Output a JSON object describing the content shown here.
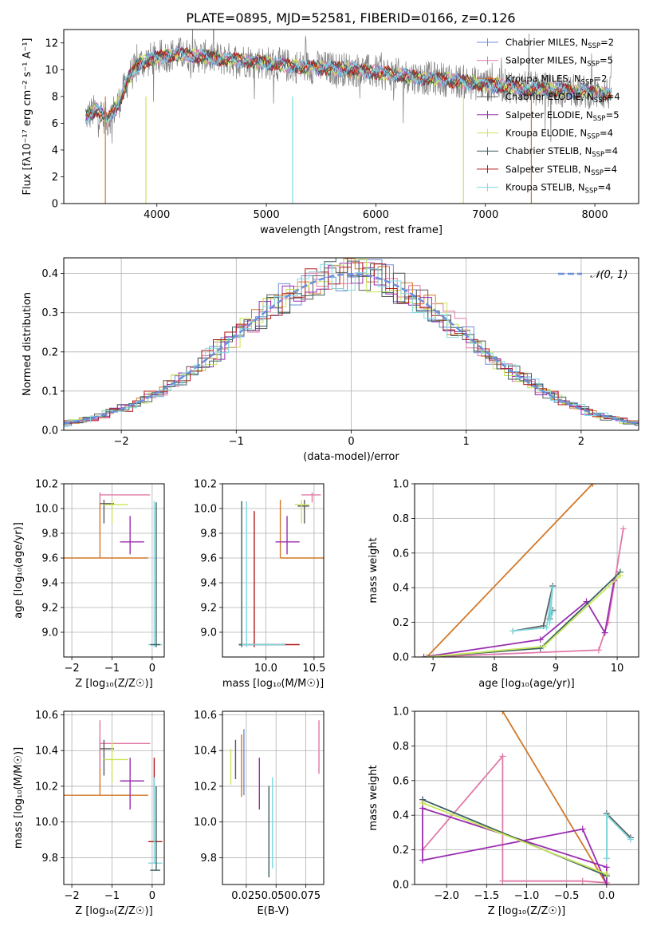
{
  "figure_title": "PLATE=0895, MJD=52581, FIBERID=0166, z=0.126",
  "colors": {
    "chabrier_miles": "#6b8fd9",
    "salpeter_miles": "#e07aa8",
    "kroupa_miles": "#d2782a",
    "chabrier_elodie": "#5a5a5a",
    "salpeter_elodie": "#9a2db0",
    "kroupa_elodie": "#c8e65a",
    "chabrier_stelib": "#3a6060",
    "salpeter_stelib": "#b01818",
    "kroupa_stelib": "#80d8e0"
  },
  "chart_data": [
    {
      "id": "spectrum",
      "type": "line",
      "xlabel": "wavelength [Angstrom, rest frame]",
      "ylabel": "Flux [fλ10⁻¹⁷ erg cm⁻² s⁻¹ A⁻¹]",
      "xlim": [
        3150,
        8400
      ],
      "ylim": [
        0,
        13
      ],
      "xticks": [
        4000,
        5000,
        6000,
        7000,
        8000
      ],
      "yticks": [
        0,
        2,
        4,
        6,
        8,
        10,
        12
      ],
      "grid": false,
      "legend_position": "top-right",
      "data_continuum": {
        "x": [
          3350,
          3450,
          3550,
          3650,
          3750,
          3850,
          3950,
          4050,
          4200,
          4400,
          4600,
          4800,
          5000,
          5200,
          5400,
          5600,
          5800,
          6000,
          6200,
          6400,
          6600,
          6800,
          7000,
          7200,
          7400,
          7600,
          7800,
          8000,
          8150
        ],
        "y": [
          6.5,
          7.0,
          6.2,
          7.5,
          9.5,
          10.5,
          10.8,
          11.0,
          11.2,
          11.0,
          10.8,
          10.7,
          10.5,
          10.3,
          10.2,
          10.1,
          10.0,
          9.8,
          9.6,
          9.4,
          9.3,
          9.1,
          8.9,
          8.8,
          8.6,
          8.5,
          8.4,
          8.3,
          8.2
        ]
      },
      "drops": [
        {
          "x": 3530,
          "series": "kroupa_miles"
        },
        {
          "x": 3900,
          "series": "kroupa_elodie"
        },
        {
          "x": 5240,
          "series": "kroupa_stelib"
        },
        {
          "x": 6800,
          "series": "kroupa_elodie"
        },
        {
          "x": 7420,
          "series": "kroupa_miles"
        }
      ],
      "legend": [
        {
          "label": "Chabrier MILES, N",
          "sub": "SSP",
          "suffix": "=2",
          "color_key": "chabrier_miles"
        },
        {
          "label": "Salpeter MILES, N",
          "sub": "SSP",
          "suffix": "=5",
          "color_key": "salpeter_miles"
        },
        {
          "label": "Kroupa MILES, N",
          "sub": "SSP",
          "suffix": "=2",
          "color_key": "kroupa_miles"
        },
        {
          "label": "Chabrier ELODIE, N",
          "sub": "SSP",
          "suffix": "=4",
          "color_key": "chabrier_elodie"
        },
        {
          "label": "Salpeter ELODIE, N",
          "sub": "SSP",
          "suffix": "=5",
          "color_key": "salpeter_elodie"
        },
        {
          "label": "Kroupa ELODIE, N",
          "sub": "SSP",
          "suffix": "=4",
          "color_key": "kroupa_elodie"
        },
        {
          "label": "Chabrier STELIB, N",
          "sub": "SSP",
          "suffix": "=4",
          "color_key": "chabrier_stelib"
        },
        {
          "label": "Salpeter STELIB, N",
          "sub": "SSP",
          "suffix": "=4",
          "color_key": "salpeter_stelib"
        },
        {
          "label": "Kroupa STELIB, N",
          "sub": "SSP",
          "suffix": "=4",
          "color_key": "kroupa_stelib"
        }
      ]
    },
    {
      "id": "residuals",
      "type": "line",
      "xlabel": "(data-model)/error",
      "ylabel": "Normed distribution",
      "xlim": [
        -2.5,
        2.5
      ],
      "ylim": [
        0,
        0.44
      ],
      "xticks": [
        -2,
        -1,
        0,
        1,
        2
      ],
      "yticks": [
        0.0,
        0.1,
        0.2,
        0.3,
        0.4
      ],
      "grid": true,
      "legend_position": "top-right",
      "gaussian_label": "𝒩(0, 1)",
      "gaussian_color": "#6a8fdc"
    },
    {
      "id": "age_vs_Z",
      "type": "scatter",
      "xlabel": "Z [log₁₀(Z/Z☉)]",
      "ylabel": "age  [log₁₀(age/yr)]",
      "xlim": [
        -2.2,
        0.3
      ],
      "ylim": [
        8.8,
        10.2
      ],
      "xticks": [
        -2,
        -1,
        0
      ],
      "yticks": [
        9.0,
        9.2,
        9.4,
        9.6,
        9.8,
        10.0,
        10.2
      ],
      "grid": true,
      "crosses": [
        {
          "c": "kroupa_miles",
          "x": -1.3,
          "y": 9.6,
          "x0": -2.2,
          "x1": -0.1,
          "y0": 9.6,
          "y1": 10.05
        },
        {
          "c": "salpeter_miles",
          "x": -1.3,
          "y": 10.11,
          "x0": -1.3,
          "x1": -0.05,
          "y0": 10.05,
          "y1": 10.13
        },
        {
          "c": "chabrier_elodie",
          "x": -1.2,
          "y": 10.04,
          "x0": -1.3,
          "x1": -0.95,
          "y0": 9.88,
          "y1": 10.07
        },
        {
          "c": "kroupa_elodie",
          "x": -1.0,
          "y": 10.03,
          "x0": -1.2,
          "x1": -0.6,
          "y0": 9.88,
          "y1": 10.07
        },
        {
          "c": "salpeter_elodie",
          "x": -0.55,
          "y": 9.73,
          "x0": -0.8,
          "x1": -0.2,
          "y0": 9.63,
          "y1": 9.94
        },
        {
          "c": "kroupa_stelib",
          "x": 0.05,
          "y": 8.9,
          "x0": -0.1,
          "x1": 0.25,
          "y0": 8.88,
          "y1": 10.06
        },
        {
          "c": "chabrier_stelib",
          "x": 0.1,
          "y": 8.9,
          "x0": -0.05,
          "x1": 0.2,
          "y0": 8.88,
          "y1": 10.05
        }
      ]
    },
    {
      "id": "age_vs_mass",
      "type": "scatter",
      "xlabel": "mass [log₁₀(M/M☉)]",
      "ylabel": "",
      "xlim": [
        9.55,
        10.6
      ],
      "ylim": [
        8.8,
        10.2
      ],
      "xticks": [
        10.0,
        10.5
      ],
      "yticks": [
        9.0,
        9.2,
        9.4,
        9.6,
        9.8,
        10.0,
        10.2
      ],
      "grid": true,
      "crosses": [
        {
          "c": "kroupa_miles",
          "x": 10.15,
          "y": 9.6,
          "x0": 10.15,
          "x1": 10.6,
          "y0": 9.6,
          "y1": 10.07
        },
        {
          "c": "salpeter_miles",
          "x": 10.48,
          "y": 10.11,
          "x0": 10.37,
          "x1": 10.57,
          "y0": 10.05,
          "y1": 10.13
        },
        {
          "c": "chabrier_elodie",
          "x": 10.4,
          "y": 10.02,
          "x0": 10.33,
          "x1": 10.45,
          "y0": 9.88,
          "y1": 10.07
        },
        {
          "c": "kroupa_elodie",
          "x": 10.37,
          "y": 10.03,
          "x0": 10.3,
          "x1": 10.45,
          "y0": 9.88,
          "y1": 10.07
        },
        {
          "c": "salpeter_elodie",
          "x": 10.22,
          "y": 9.73,
          "x0": 10.1,
          "x1": 10.35,
          "y0": 9.63,
          "y1": 9.94
        },
        {
          "c": "salpeter_stelib",
          "x": 9.88,
          "y": 8.9,
          "x0": 9.72,
          "x1": 10.35,
          "y0": 8.88,
          "y1": 9.98
        },
        {
          "c": "chabrier_stelib",
          "x": 9.75,
          "y": 8.9,
          "x0": 9.72,
          "x1": 10.2,
          "y0": 8.88,
          "y1": 10.06
        },
        {
          "c": "kroupa_stelib",
          "x": 9.8,
          "y": 8.9,
          "x0": 9.75,
          "x1": 10.2,
          "y0": 8.88,
          "y1": 10.06
        }
      ]
    },
    {
      "id": "weight_vs_age",
      "type": "line",
      "xlabel": "age  [log₁₀(age/yr)]",
      "ylabel": "mass weight",
      "xlim": [
        6.7,
        10.35
      ],
      "ylim": [
        0,
        1.0
      ],
      "xticks": [
        7,
        8,
        9,
        10
      ],
      "yticks": [
        0.0,
        0.2,
        0.4,
        0.6,
        0.8,
        1.0
      ],
      "grid": true,
      "series": [
        {
          "c": "kroupa_miles",
          "x": [
            6.9,
            9.6
          ],
          "y": [
            0.0,
            1.0
          ]
        },
        {
          "c": "salpeter_miles",
          "x": [
            6.9,
            9.7,
            9.85,
            10.1
          ],
          "y": [
            0.0,
            0.04,
            0.2,
            0.74
          ]
        },
        {
          "c": "salpeter_elodie",
          "x": [
            6.85,
            8.75,
            9.5,
            9.8,
            9.95
          ],
          "y": [
            0.0,
            0.1,
            0.32,
            0.14,
            0.44
          ]
        },
        {
          "c": "chabrier_elodie",
          "x": [
            8.3,
            8.8,
            8.95,
            8.9,
            8.95
          ],
          "y": [
            0.15,
            0.18,
            0.41,
            0.22,
            0.27
          ]
        },
        {
          "c": "kroupa_stelib",
          "x": [
            8.3,
            8.85,
            8.95,
            8.9,
            8.95
          ],
          "y": [
            0.15,
            0.17,
            0.4,
            0.2,
            0.26
          ]
        },
        {
          "c": "chabrier_stelib",
          "x": [
            6.9,
            8.75,
            10.05
          ],
          "y": [
            0.0,
            0.05,
            0.49
          ]
        },
        {
          "c": "kroupa_elodie",
          "x": [
            6.9,
            8.8,
            10.05
          ],
          "y": [
            0.0,
            0.06,
            0.47
          ]
        }
      ]
    },
    {
      "id": "mass_vs_Z",
      "type": "scatter",
      "xlabel": "Z [log₁₀(Z/Z☉)]",
      "ylabel": "mass [log₁₀(M/M☉)]",
      "xlim": [
        -2.2,
        0.3
      ],
      "ylim": [
        9.65,
        10.62
      ],
      "xticks": [
        -2,
        -1,
        0
      ],
      "yticks": [
        9.8,
        10.0,
        10.2,
        10.4,
        10.6
      ],
      "grid": true,
      "crosses": [
        {
          "c": "kroupa_miles",
          "x": -1.3,
          "y": 10.15,
          "x0": -2.2,
          "x1": -0.1,
          "y0": 10.15,
          "y1": 10.47
        },
        {
          "c": "salpeter_miles",
          "x": -1.3,
          "y": 10.44,
          "x0": -1.3,
          "x1": -0.05,
          "y0": 10.3,
          "y1": 10.57
        },
        {
          "c": "chabrier_elodie",
          "x": -1.2,
          "y": 10.41,
          "x0": -1.3,
          "x1": -0.95,
          "y0": 10.26,
          "y1": 10.46
        },
        {
          "c": "kroupa_elodie",
          "x": -1.0,
          "y": 10.35,
          "x0": -1.2,
          "x1": -0.6,
          "y0": 10.22,
          "y1": 10.45
        },
        {
          "c": "salpeter_elodie",
          "x": -0.55,
          "y": 10.23,
          "x0": -0.8,
          "x1": -0.2,
          "y0": 10.07,
          "y1": 10.36
        },
        {
          "c": "salpeter_stelib",
          "x": 0.05,
          "y": 9.89,
          "x0": -0.1,
          "x1": 0.25,
          "y0": 9.89,
          "y1": 10.36
        },
        {
          "c": "kroupa_stelib",
          "x": 0.05,
          "y": 9.77,
          "x0": -0.1,
          "x1": 0.25,
          "y0": 9.77,
          "y1": 10.25
        },
        {
          "c": "chabrier_stelib",
          "x": 0.1,
          "y": 9.73,
          "x0": -0.05,
          "x1": 0.2,
          "y0": 9.73,
          "y1": 10.2
        }
      ]
    },
    {
      "id": "mass_vs_ebv",
      "type": "scatter",
      "xlabel": "E(B-V)",
      "ylabel": "",
      "xlim": [
        0.005,
        0.09
      ],
      "ylim": [
        9.65,
        10.62
      ],
      "xticks": [
        0.025,
        0.05,
        0.075
      ],
      "xtick_labels": [
        "0.025",
        "0.050",
        "0.075"
      ],
      "yticks": [
        9.8,
        10.0,
        10.2,
        10.4,
        10.6
      ],
      "grid": true,
      "bars": [
        {
          "c": "kroupa_elodie",
          "x": 0.012,
          "y0": 10.21,
          "y1": 10.41
        },
        {
          "c": "chabrier_elodie",
          "x": 0.016,
          "y0": 10.24,
          "y1": 10.46
        },
        {
          "c": "kroupa_miles",
          "x": 0.021,
          "y0": 10.14,
          "y1": 10.49
        },
        {
          "c": "chabrier_miles",
          "x": 0.023,
          "y0": 10.15,
          "y1": 10.52
        },
        {
          "c": "salpeter_elodie",
          "x": 0.036,
          "y0": 10.07,
          "y1": 10.36
        },
        {
          "c": "chabrier_stelib",
          "x": 0.044,
          "y0": 9.69,
          "y1": 10.2
        },
        {
          "c": "kroupa_stelib",
          "x": 0.047,
          "y0": 9.74,
          "y1": 10.25
        },
        {
          "c": "salpeter_miles",
          "x": 0.086,
          "y0": 10.27,
          "y1": 10.57
        }
      ]
    },
    {
      "id": "weight_vs_Z",
      "type": "line",
      "xlabel": "Z [log₁₀(Z/Z☉)]",
      "ylabel": "mass weight",
      "xlim": [
        -2.4,
        0.4
      ],
      "ylim": [
        0,
        1.0
      ],
      "xticks": [
        -2.0,
        -1.5,
        -1.0,
        -0.5,
        0.0
      ],
      "yticks": [
        0.0,
        0.2,
        0.4,
        0.6,
        0.8,
        1.0
      ],
      "grid": true,
      "series": [
        {
          "c": "kroupa_miles",
          "x": [
            -1.3,
            0.0
          ],
          "y": [
            1.0,
            0.0
          ]
        },
        {
          "c": "salpeter_miles",
          "x": [
            -2.3,
            -1.3,
            -1.3,
            -0.3,
            0.0
          ],
          "y": [
            0.2,
            0.74,
            0.02,
            0.02,
            0.01
          ]
        },
        {
          "c": "salpeter_elodie",
          "x": [
            -2.3,
            -2.3,
            -0.3,
            0.0,
            0.0,
            -2.3
          ],
          "y": [
            0.49,
            0.14,
            0.32,
            0.0,
            0.1,
            0.44
          ]
        },
        {
          "c": "chabrier_elodie",
          "x": [
            0.0,
            0.0,
            0.3
          ],
          "y": [
            0.15,
            0.41,
            0.27
          ]
        },
        {
          "c": "kroupa_stelib",
          "x": [
            0.0,
            0.0,
            0.3
          ],
          "y": [
            0.15,
            0.4,
            0.26
          ]
        },
        {
          "c": "chabrier_stelib",
          "x": [
            -2.3,
            0.0
          ],
          "y": [
            0.49,
            0.05
          ]
        },
        {
          "c": "kroupa_elodie",
          "x": [
            -2.3,
            0.0
          ],
          "y": [
            0.47,
            0.06
          ]
        }
      ]
    }
  ]
}
